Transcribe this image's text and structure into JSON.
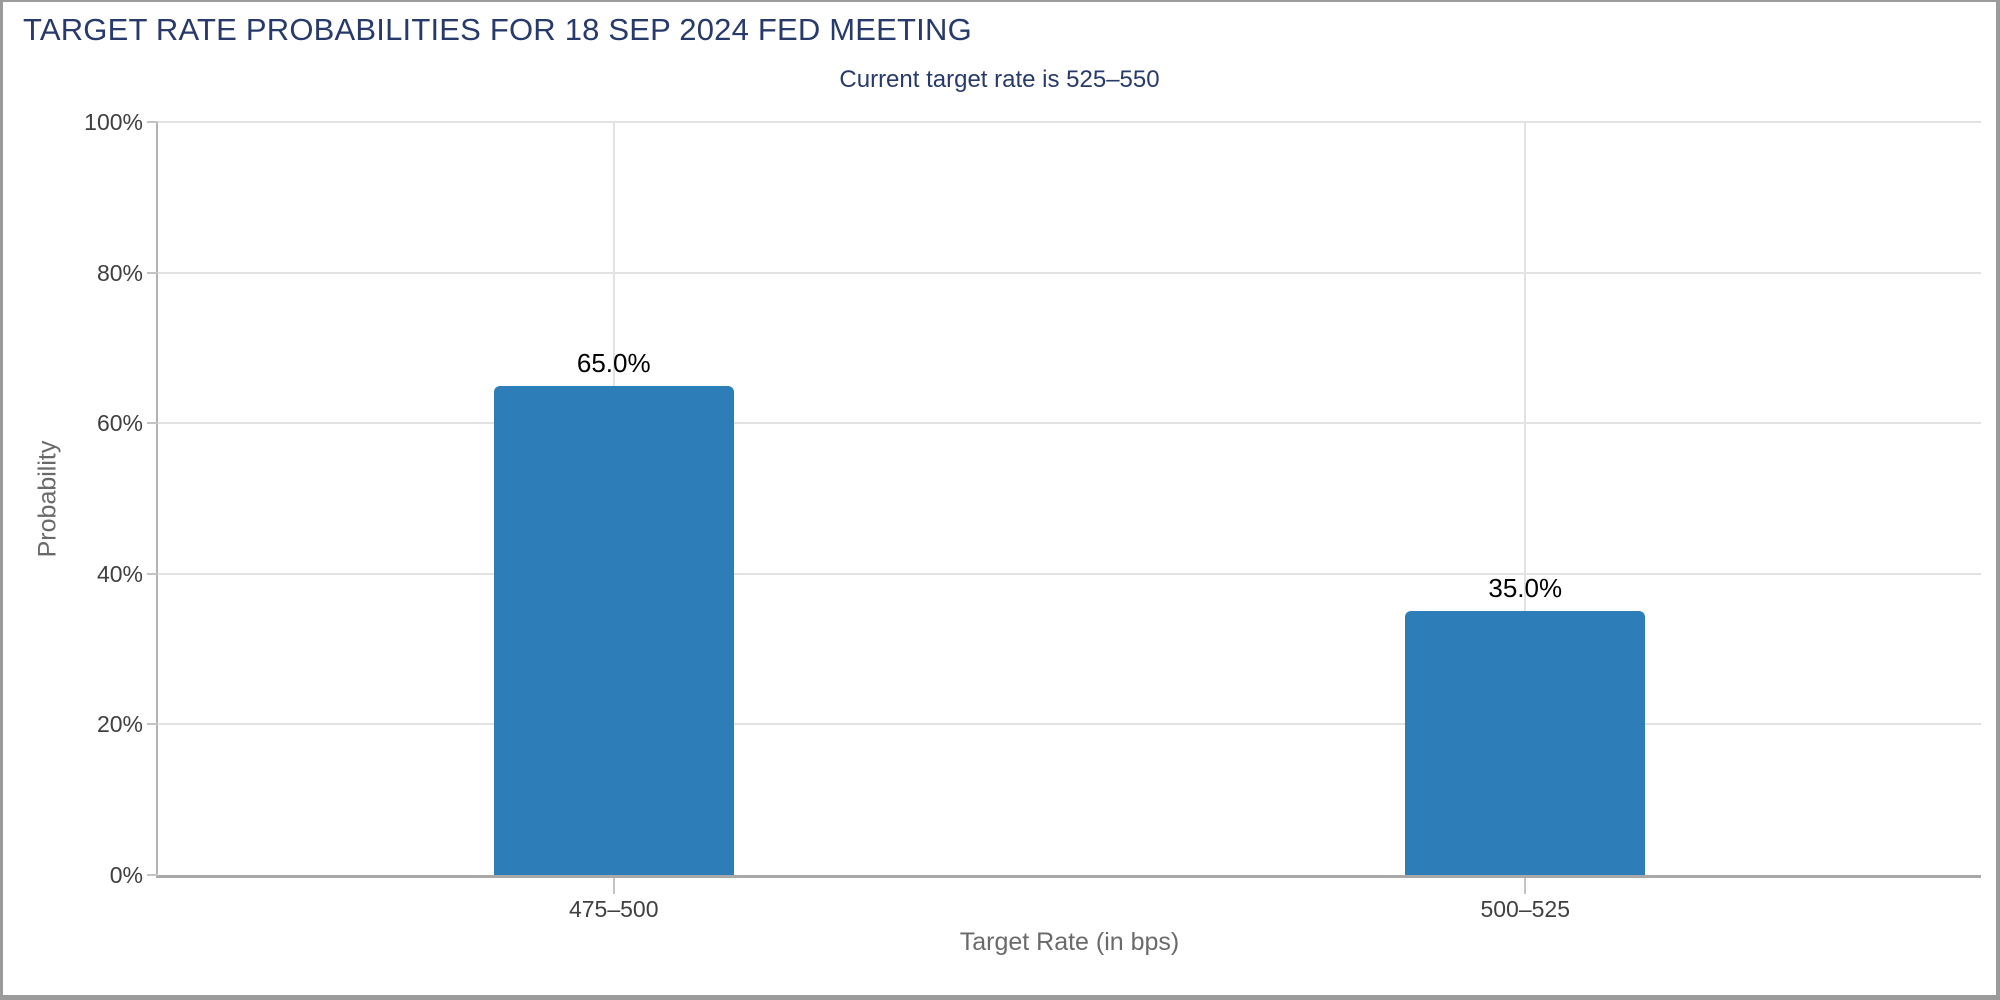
{
  "page": {
    "background": "#ffffff",
    "border_color": "#9b9b9b"
  },
  "chart_data": {
    "type": "bar",
    "title": "TARGET RATE PROBABILITIES FOR 18 SEP 2024 FED MEETING",
    "subtitle": "Current target rate is 525–550",
    "xlabel": "Target Rate (in bps)",
    "ylabel": "Probability",
    "categories": [
      "475–500",
      "500–525"
    ],
    "values": [
      65.0,
      35.0
    ],
    "value_labels": [
      "65.0%",
      "35.0%"
    ],
    "ylim": [
      0,
      100
    ],
    "ytick_step": 20,
    "yticks": [
      {
        "value": 0,
        "label": "0%"
      },
      {
        "value": 20,
        "label": "20%"
      },
      {
        "value": 40,
        "label": "40%"
      },
      {
        "value": 60,
        "label": "60%"
      },
      {
        "value": 80,
        "label": "80%"
      },
      {
        "value": 100,
        "label": "100%"
      }
    ],
    "grid": true,
    "legend": false,
    "bar_color": "#2d7eb8",
    "colors": {
      "title": "#273a6b",
      "axis_title": "#6a6a6a",
      "tick_label": "#404040",
      "bar_label": "#000000",
      "gridline": "#e2e2e2",
      "y_axis_line": "#b3b3b3",
      "x_axis_line": "#a8a8a8",
      "tick_mark": "#c4c4c4"
    }
  }
}
